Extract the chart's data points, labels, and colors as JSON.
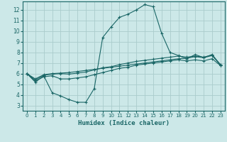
{
  "title": "",
  "xlabel": "Humidex (Indice chaleur)",
  "ylabel": "",
  "background_color": "#cce8e8",
  "grid_color": "#aacccc",
  "line_color": "#1a6666",
  "xlim": [
    -0.5,
    23.5
  ],
  "ylim": [
    2.5,
    12.8
  ],
  "xticks": [
    0,
    1,
    2,
    3,
    4,
    5,
    6,
    7,
    8,
    9,
    10,
    11,
    12,
    13,
    14,
    15,
    16,
    17,
    18,
    19,
    20,
    21,
    22,
    23
  ],
  "yticks": [
    3,
    4,
    5,
    6,
    7,
    8,
    9,
    10,
    11,
    12
  ],
  "line1_x": [
    0,
    1,
    2,
    3,
    4,
    5,
    6,
    7,
    8,
    9,
    10,
    11,
    12,
    13,
    14,
    15,
    16,
    17,
    18,
    19,
    20,
    21,
    22,
    23
  ],
  "line1_y": [
    6.0,
    5.2,
    5.8,
    4.2,
    3.9,
    3.55,
    3.3,
    3.3,
    4.6,
    9.4,
    10.4,
    11.3,
    11.6,
    12.0,
    12.5,
    12.3,
    9.8,
    8.0,
    7.7,
    7.4,
    7.8,
    7.5,
    7.8,
    6.8
  ],
  "line2_x": [
    0,
    1,
    2,
    3,
    4,
    5,
    6,
    7,
    8,
    9,
    10,
    11,
    12,
    13,
    14,
    15,
    16,
    17,
    18,
    19,
    20,
    21,
    22,
    23
  ],
  "line2_y": [
    6.0,
    5.5,
    5.9,
    6.0,
    6.05,
    6.1,
    6.2,
    6.3,
    6.4,
    6.5,
    6.6,
    6.7,
    6.8,
    6.9,
    7.0,
    7.1,
    7.2,
    7.3,
    7.4,
    7.45,
    7.6,
    7.5,
    7.7,
    6.8
  ],
  "line3_x": [
    0,
    1,
    2,
    3,
    4,
    5,
    6,
    7,
    8,
    9,
    10,
    11,
    12,
    13,
    14,
    15,
    16,
    17,
    18,
    19,
    20,
    21,
    22,
    23
  ],
  "line3_y": [
    6.0,
    5.4,
    5.85,
    5.95,
    6.0,
    5.95,
    6.05,
    6.15,
    6.35,
    6.55,
    6.65,
    6.85,
    7.0,
    7.15,
    7.25,
    7.35,
    7.45,
    7.55,
    7.65,
    7.55,
    7.65,
    7.55,
    7.75,
    6.85
  ],
  "line4_x": [
    0,
    1,
    2,
    3,
    4,
    5,
    6,
    7,
    8,
    9,
    10,
    11,
    12,
    13,
    14,
    15,
    16,
    17,
    18,
    19,
    20,
    21,
    22,
    23
  ],
  "line4_y": [
    6.0,
    5.3,
    5.7,
    5.8,
    5.5,
    5.5,
    5.6,
    5.7,
    5.9,
    6.1,
    6.3,
    6.5,
    6.6,
    6.8,
    6.9,
    7.0,
    7.1,
    7.2,
    7.3,
    7.2,
    7.3,
    7.2,
    7.4,
    6.75
  ]
}
